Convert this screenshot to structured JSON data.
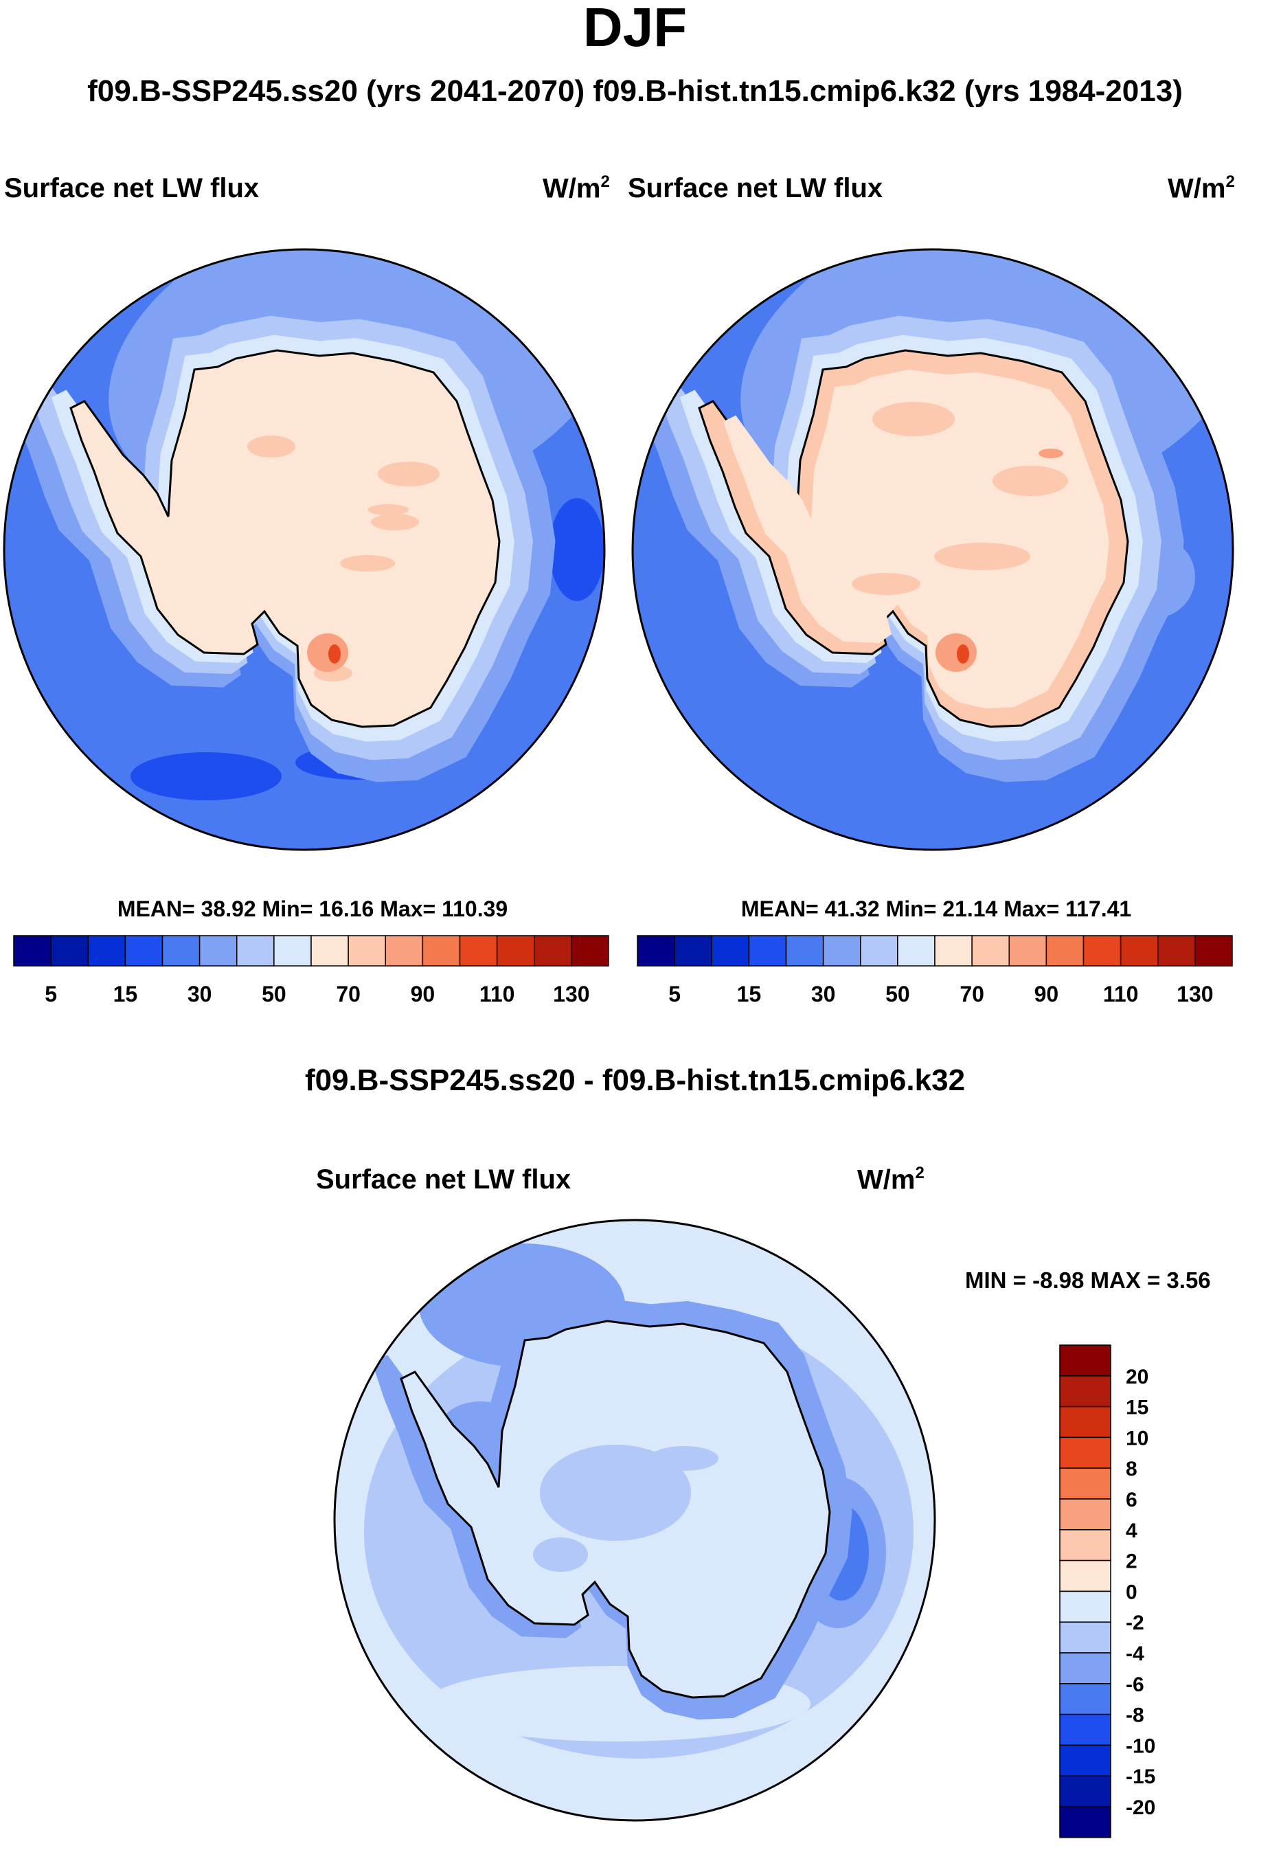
{
  "header": {
    "title": "DJF",
    "subtitle": "f09.B-SSP245.ss20 (yrs 2041-2070)  f09.B-hist.tn15.cmip6.k32 (yrs 1984-2013)"
  },
  "panels": {
    "left": {
      "variable": "Surface net LW flux",
      "units_base": "W/m",
      "units_exp": "2",
      "stats_text": "MEAN=  38.92  Min=  16.16  Max= 110.39"
    },
    "right": {
      "variable": "Surface net LW flux",
      "units_base": "W/m",
      "units_exp": "2",
      "stats_text": "MEAN=  41.32  Min=  21.14  Max= 117.41"
    },
    "diff": {
      "header": "f09.B-SSP245.ss20 - f09.B-hist.tn15.cmip6.k32",
      "variable": "Surface net LW flux",
      "units_base": "W/m",
      "units_exp": "2",
      "minmax_text": "MIN =  -8.98 MAX =   3.56"
    }
  },
  "colorbars": {
    "abs": {
      "colors": [
        "#00008B",
        "#0018A8",
        "#0530D8",
        "#1F4EF0",
        "#4A7AF2",
        "#7FA2F4",
        "#B1C8F8",
        "#D9E8FA",
        "#FDE6D6",
        "#FCC9AE",
        "#F9A07E",
        "#F47A4E",
        "#E8461E",
        "#D03010",
        "#B01C0C",
        "#8B0000"
      ],
      "labels": [
        "5",
        "15",
        "30",
        "50",
        "70",
        "90",
        "110",
        "130"
      ]
    },
    "diff": {
      "colors": [
        "#8B0000",
        "#B01C0C",
        "#D03010",
        "#E8461E",
        "#F47A4E",
        "#F9A07E",
        "#FCC9AE",
        "#FDE6D6",
        "#D9E8FA",
        "#B1C8F8",
        "#7FA2F4",
        "#4A7AF2",
        "#1F4EF0",
        "#0530D8",
        "#0018A8",
        "#00008B"
      ],
      "labels": [
        "20",
        "15",
        "10",
        "8",
        "6",
        "4",
        "2",
        "0",
        "-2",
        "-4",
        "-6",
        "-8",
        "-10",
        "-15",
        "-20"
      ]
    }
  }
}
